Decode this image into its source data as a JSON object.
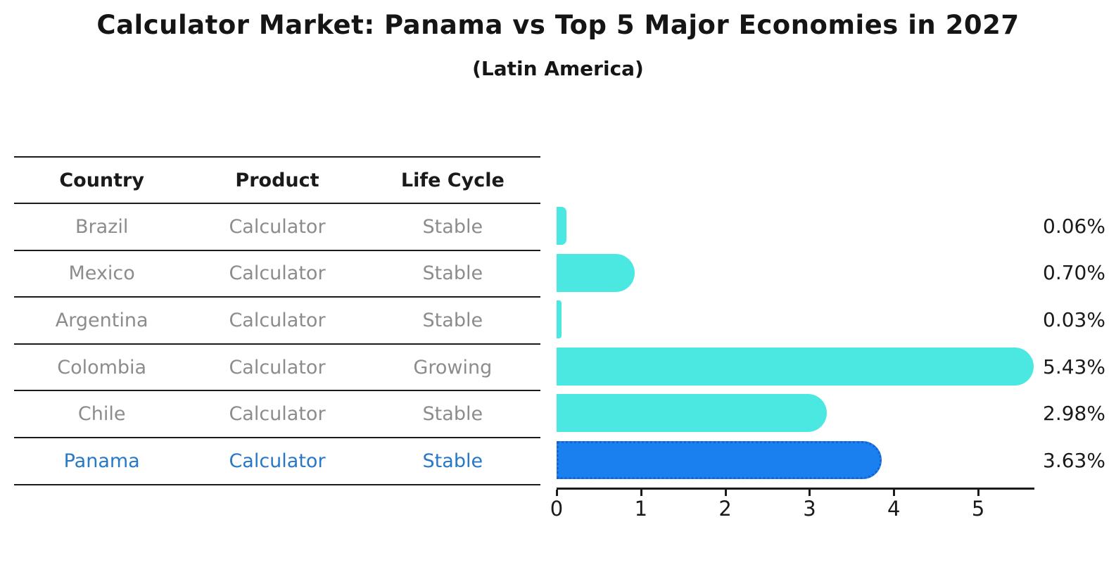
{
  "title": "Calculator Market: Panama vs Top 5 Major Economies in 2027",
  "subtitle": "(Latin America)",
  "table": {
    "headers": [
      "Country",
      "Product",
      "Life Cycle"
    ],
    "rows": [
      [
        "Brazil",
        "Calculator",
        "Stable"
      ],
      [
        "Mexico",
        "Calculator",
        "Stable"
      ],
      [
        "Argentina",
        "Calculator",
        "Stable"
      ],
      [
        "Colombia",
        "Calculator",
        "Growing"
      ],
      [
        "Chile",
        "Calculator",
        "Stable"
      ],
      [
        "Panama",
        "Calculator",
        "Stable"
      ]
    ],
    "highlight_row": 5,
    "highlight_text_color": "#2878c9"
  },
  "chart_data": {
    "type": "bar",
    "orientation": "horizontal",
    "title": "Calculator Market: Panama vs Top 5 Major Economies in 2027 (Latin America)",
    "categories": [
      "Brazil",
      "Mexico",
      "Argentina",
      "Colombia",
      "Chile",
      "Panama"
    ],
    "values": [
      0.06,
      0.7,
      0.03,
      5.43,
      2.98,
      3.63
    ],
    "value_labels": [
      "0.06%",
      "0.70%",
      "0.03%",
      "5.43%",
      "2.98%",
      "3.63%"
    ],
    "x_ticks": [
      "0",
      "1",
      "2",
      "3",
      "4",
      "5"
    ],
    "xlim": [
      0,
      5.65
    ],
    "grid": false,
    "legend": "none",
    "bar_color": "#4be8e1",
    "highlight_index": 5,
    "highlight_bar_color": "#1b80ef",
    "highlight_bar_border_color": "#1463d2"
  }
}
